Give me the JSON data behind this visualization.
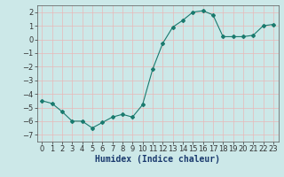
{
  "x": [
    0,
    1,
    2,
    3,
    4,
    5,
    6,
    7,
    8,
    9,
    10,
    11,
    12,
    13,
    14,
    15,
    16,
    17,
    18,
    19,
    20,
    21,
    22,
    23
  ],
  "y": [
    -4.5,
    -4.7,
    -5.3,
    -6.0,
    -6.0,
    -6.5,
    -6.1,
    -5.7,
    -5.5,
    -5.7,
    -4.8,
    -2.2,
    -0.3,
    0.9,
    1.4,
    2.0,
    2.1,
    1.8,
    0.2,
    0.2,
    0.2,
    0.3,
    1.0,
    1.1
  ],
  "line_color": "#1a7a6e",
  "marker": "D",
  "marker_size": 2.0,
  "bg_color": "#cce8e8",
  "grid_color": "#e8b8b8",
  "xlabel": "Humidex (Indice chaleur)",
  "xlabel_fontsize": 7,
  "tick_fontsize": 6,
  "xlim": [
    -0.5,
    23.5
  ],
  "ylim": [
    -7.5,
    2.5
  ],
  "yticks": [
    -7,
    -6,
    -5,
    -4,
    -3,
    -2,
    -1,
    0,
    1,
    2
  ],
  "xticks": [
    0,
    1,
    2,
    3,
    4,
    5,
    6,
    7,
    8,
    9,
    10,
    11,
    12,
    13,
    14,
    15,
    16,
    17,
    18,
    19,
    20,
    21,
    22,
    23
  ]
}
